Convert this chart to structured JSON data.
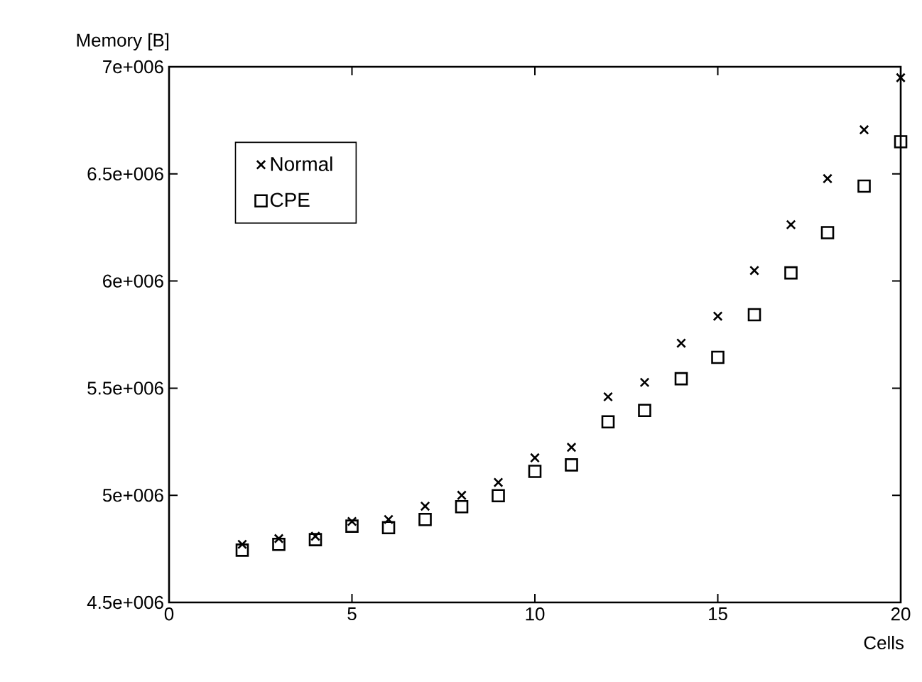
{
  "chart_data": {
    "type": "scatter",
    "xlabel": "Cells",
    "ylabel": "Memory [B]",
    "x": [
      2,
      3,
      4,
      5,
      6,
      7,
      8,
      9,
      10,
      11,
      12,
      13,
      14,
      15,
      16,
      17,
      18,
      19,
      20
    ],
    "series": [
      {
        "name": "Normal",
        "color": "#000000",
        "marker": "cross",
        "values": [
          4771000,
          4798000,
          4809000,
          4878000,
          4887000,
          4949000,
          5000000,
          5060000,
          5175000,
          5224000,
          5460000,
          5527000,
          5710000,
          5836000,
          6049000,
          6263000,
          6478000,
          6706000,
          6949000
        ]
      },
      {
        "name": "CPE",
        "color": "#000000",
        "marker": "square",
        "values": [
          4744000,
          4771000,
          4793000,
          4856000,
          4849000,
          4887000,
          4947000,
          4998000,
          5112000,
          5142000,
          5343000,
          5396000,
          5544000,
          5644000,
          5843000,
          6038000,
          6226000,
          6443000,
          6650000
        ]
      }
    ],
    "xlim": [
      0,
      20
    ],
    "ylim": [
      4500000,
      7000000
    ],
    "xticks": [
      0,
      5,
      10,
      15,
      20
    ],
    "yticks": [
      {
        "value": 4500000,
        "label": "4.5e+006"
      },
      {
        "value": 5000000,
        "label": "5e+006"
      },
      {
        "value": 5500000,
        "label": "5.5e+006"
      },
      {
        "value": 6000000,
        "label": "6e+006"
      },
      {
        "value": 6500000,
        "label": "6.5e+006"
      },
      {
        "value": 7000000,
        "label": "7e+006"
      }
    ],
    "legend": "top left",
    "grid": false
  }
}
